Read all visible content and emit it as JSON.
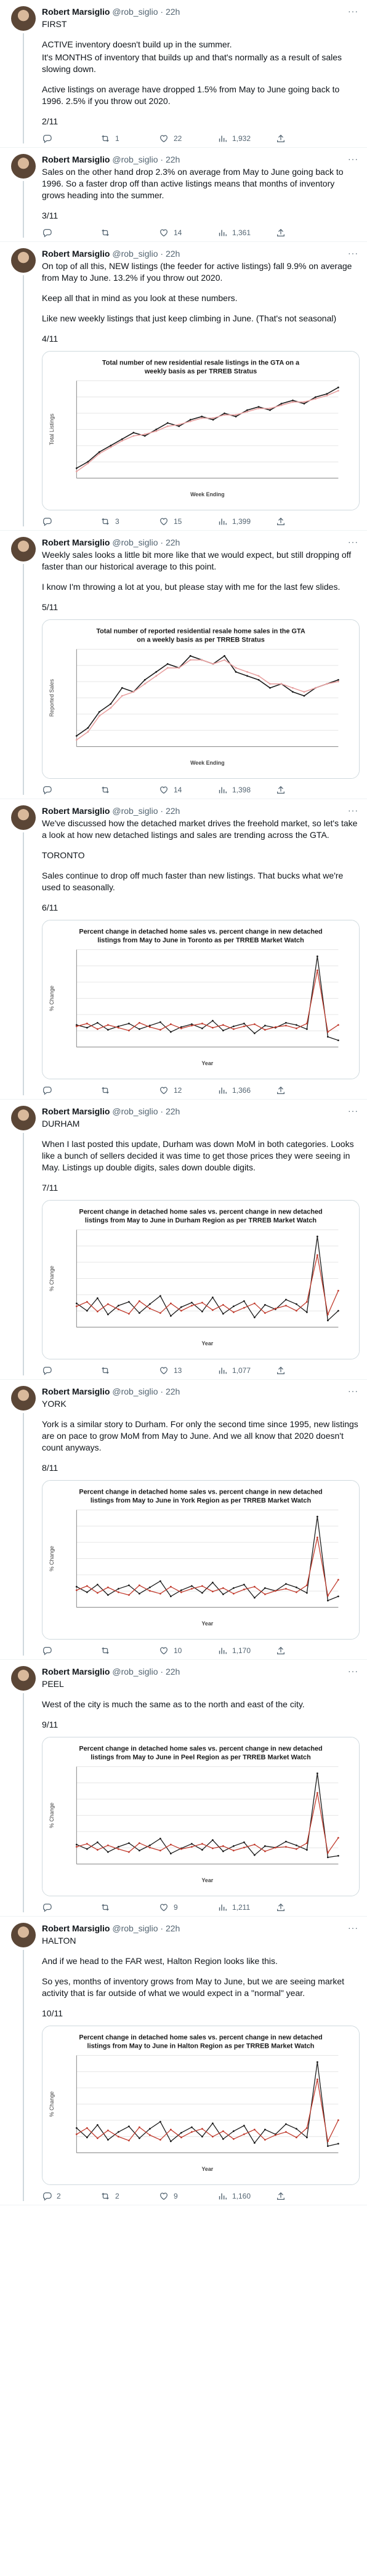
{
  "author": {
    "name": "Robert Marsiglio",
    "handle": "@rob_siglio",
    "time": "22h"
  },
  "tweets": [
    {
      "id": "t1",
      "paragraphs": [
        "FIRST",
        "ACTIVE inventory doesn't build up in the summer.",
        "It's MONTHS of inventory that builds up and that's normally as a result of sales slowing down.",
        "Active listings on average have dropped 1.5% from May to June going back to 1996. 2.5% if you throw out 2020.",
        "2/11"
      ],
      "gaps": [
        false,
        true,
        false,
        true,
        true
      ],
      "reply": "",
      "retweet": "1",
      "like": "22",
      "views": "1,932"
    },
    {
      "id": "t2",
      "paragraphs": [
        "Sales on the other hand drop 2.3% on average from May to June going back to 1996. So a faster drop off than active listings means that months of inventory grows heading into the summer.",
        "3/11"
      ],
      "gaps": [
        false,
        true
      ],
      "reply": "",
      "retweet": "",
      "like": "14",
      "views": "1,361"
    },
    {
      "id": "t3",
      "paragraphs": [
        "On top of all this, NEW listings (the feeder for active listings) fall 9.9% on average from May to June. 13.2% if you throw out 2020.",
        "Keep all that in mind as you look at these numbers.",
        "Like new weekly listings that just keep climbing in June. (That's not seasonal)",
        "4/11"
      ],
      "gaps": [
        false,
        true,
        true,
        true
      ],
      "reply": "",
      "retweet": "3",
      "like": "15",
      "views": "1,399",
      "chart": {
        "title_lines": [
          "Total number of new residential resale listings in the GTA on a",
          "weekly basis as per TRREB Stratus"
        ],
        "ylabel": "Total Listings",
        "xlabel": "Week Ending"
      }
    },
    {
      "id": "t4",
      "paragraphs": [
        "Weekly sales looks a little bit more like that we would expect, but still dropping off faster than our historical average to this point.",
        "I know I'm throwing a lot at you, but please stay with me for the last few slides.",
        "5/11"
      ],
      "gaps": [
        false,
        true,
        true
      ],
      "reply": "",
      "retweet": "",
      "like": "14",
      "views": "1,398",
      "chart": {
        "title_lines": [
          "Total number of reported residential resale home sales in the GTA",
          "on a weekly basis as per TRREB Stratus"
        ],
        "ylabel": "Reported Sales",
        "xlabel": "Week Ending"
      }
    },
    {
      "id": "t5",
      "paragraphs": [
        "We've discussed how the detached market drives the freehold market, so let's take a look at how new detached listings and sales are trending across the GTA.",
        "TORONTO",
        "Sales continue to drop off much faster than new listings. That bucks what we're used to seasonally.",
        "6/11"
      ],
      "gaps": [
        false,
        true,
        true,
        true
      ],
      "reply": "",
      "retweet": "",
      "like": "12",
      "views": "1,366",
      "chart": {
        "title_lines": [
          "Percent change in detached home sales vs. percent change in new detached",
          "listings from May to June in Toronto as per TRREB Market Watch"
        ],
        "ylabel": "% Change",
        "xlabel": "Year"
      }
    },
    {
      "id": "t6",
      "paragraphs": [
        "DURHAM",
        "When I last posted this update, Durham was down MoM in both categories. Looks like a bunch of sellers decided it was time to get those prices they were seeing in May. Listings up double digits, sales down double digits.",
        "7/11"
      ],
      "gaps": [
        false,
        true,
        true
      ],
      "reply": "",
      "retweet": "",
      "like": "13",
      "views": "1,077",
      "chart": {
        "title_lines": [
          "Percent change in detached home sales vs. percent change in new detached",
          "listings from May to June in Durham Region as per TRREB Market Watch"
        ],
        "ylabel": "% Change",
        "xlabel": "Year"
      }
    },
    {
      "id": "t7",
      "paragraphs": [
        "YORK",
        "York is a similar story to Durham. For only the second time since 1995, new listings are on pace to grow MoM from May to June. And we all know that 2020 doesn't count anyways.",
        "8/11"
      ],
      "gaps": [
        false,
        true,
        true
      ],
      "reply": "",
      "retweet": "",
      "like": "10",
      "views": "1,170",
      "chart": {
        "title_lines": [
          "Percent change in detached home sales vs. percent change in new detached",
          "listings from May to June in York Region as per TRREB Market Watch"
        ],
        "ylabel": "% Change",
        "xlabel": "Year"
      }
    },
    {
      "id": "t8",
      "paragraphs": [
        "PEEL",
        "West of the city is much the same as to the north and east of the city.",
        "9/11"
      ],
      "gaps": [
        false,
        true,
        true
      ],
      "reply": "",
      "retweet": "",
      "like": "9",
      "views": "1,211",
      "chart": {
        "title_lines": [
          "Percent change in detached home sales vs. percent change in new detached",
          "listings from May to June in Peel Region as per TRREB Market Watch"
        ],
        "ylabel": "% Change",
        "xlabel": "Year"
      }
    },
    {
      "id": "t9",
      "paragraphs": [
        "HALTON",
        "And if we head to the FAR west, Halton Region looks like this.",
        "So yes, months of inventory grows from May to June, but we are seeing market activity that is far outside of what we would expect in a \"normal\" year.",
        "10/11"
      ],
      "gaps": [
        false,
        true,
        true,
        true
      ],
      "reply": "2",
      "retweet": "2",
      "like": "9",
      "views": "1,160",
      "chart": {
        "title_lines": [
          "Percent change in detached home sales vs. percent change in new detached",
          "listings from May to June in Halton Region as per TRREB Market Watch"
        ],
        "ylabel": "% Change",
        "xlabel": "Year"
      }
    }
  ],
  "chart_data": [
    {
      "type": "line",
      "title": "Total number of new residential resale listings in the GTA on a weekly basis as per TRREB Stratus",
      "xlabel": "Week Ending",
      "ylabel": "Total Listings",
      "series": [
        {
          "name": "",
          "values": [
            2500,
            2700,
            3000,
            3200,
            3400,
            3600,
            3500,
            3700,
            3900,
            3800,
            4000,
            4100,
            4000,
            4200,
            4100,
            4300,
            4400,
            4300,
            4500,
            4600,
            4500,
            4700,
            4800,
            5000
          ]
        },
        {
          "name": "",
          "values": [
            2400,
            2650,
            2950,
            3150,
            3350,
            3500,
            3550,
            3650,
            3800,
            3850,
            3950,
            4050,
            4050,
            4150,
            4150,
            4250,
            4350,
            4350,
            4450,
            4550,
            4550,
            4650,
            4750,
            4900
          ]
        }
      ]
    },
    {
      "type": "line",
      "title": "Total number of reported residential resale home sales in the GTA on a weekly basis as per TRREB Stratus",
      "xlabel": "Week Ending",
      "ylabel": "Reported Sales",
      "series": [
        {
          "name": "",
          "values": [
            900,
            1000,
            1200,
            1300,
            1500,
            1450,
            1600,
            1700,
            1800,
            1750,
            1900,
            1850,
            1800,
            1900,
            1700,
            1650,
            1600,
            1500,
            1550,
            1450,
            1400,
            1500,
            1550,
            1600
          ]
        },
        {
          "name": "",
          "values": [
            850,
            950,
            1150,
            1250,
            1400,
            1450,
            1550,
            1650,
            1750,
            1750,
            1850,
            1850,
            1800,
            1850,
            1750,
            1700,
            1650,
            1550,
            1550,
            1500,
            1450,
            1500,
            1550,
            1580
          ]
        }
      ]
    },
    {
      "type": "line",
      "title": "Percent change in detached home sales vs. percent change in new detached listings from May to June in Toronto as per TRREB Market Watch",
      "xlabel": "Year",
      "ylabel": "% Change",
      "series": [
        {
          "name": "",
          "values": [
            -8,
            -12,
            -5,
            -15,
            -10,
            -6,
            -14,
            -9,
            -4,
            -18,
            -11,
            -7,
            -13,
            -2,
            -16,
            -10,
            -6,
            -20,
            -9,
            -12,
            -5,
            -8,
            -14,
            90,
            -25,
            -30
          ]
        },
        {
          "name": "",
          "values": [
            -10,
            -6,
            -14,
            -8,
            -12,
            -16,
            -5,
            -11,
            -15,
            -7,
            -13,
            -9,
            -6,
            -12,
            -8,
            -14,
            -10,
            -7,
            -15,
            -11,
            -9,
            -13,
            -6,
            70,
            -18,
            -8
          ]
        }
      ]
    },
    {
      "type": "line",
      "title": "Percent change in detached home sales vs. percent change in new detached listings from May to June in Durham Region as per TRREB Market Watch",
      "xlabel": "Year",
      "ylabel": "% Change",
      "series": [
        {
          "name": "",
          "values": [
            -5,
            -15,
            2,
            -20,
            -8,
            -3,
            -18,
            -6,
            5,
            -22,
            -10,
            -4,
            -16,
            3,
            -19,
            -9,
            -2,
            -24,
            -7,
            -13,
            0,
            -6,
            -17,
            85,
            -28,
            -15
          ]
        },
        {
          "name": "",
          "values": [
            -9,
            -3,
            -16,
            -6,
            -13,
            -19,
            -2,
            -12,
            -18,
            -5,
            -15,
            -8,
            -4,
            -14,
            -7,
            -17,
            -11,
            -5,
            -18,
            -12,
            -8,
            -15,
            -3,
            60,
            -20,
            12
          ]
        }
      ]
    },
    {
      "type": "line",
      "title": "Percent change in detached home sales vs. percent change in new detached listings from May to June in York Region as per TRREB Market Watch",
      "xlabel": "Year",
      "ylabel": "% Change",
      "series": [
        {
          "name": "",
          "values": [
            -6,
            -14,
            -3,
            -18,
            -9,
            -4,
            -16,
            -7,
            2,
            -20,
            -11,
            -5,
            -15,
            0,
            -17,
            -8,
            -3,
            -22,
            -8,
            -12,
            -2,
            -7,
            -15,
            95,
            -26,
            -20
          ]
        },
        {
          "name": "",
          "values": [
            -11,
            -5,
            -15,
            -7,
            -14,
            -18,
            -4,
            -12,
            -16,
            -6,
            -14,
            -9,
            -5,
            -13,
            -8,
            -16,
            -10,
            -6,
            -17,
            -12,
            -9,
            -14,
            -4,
            65,
            -19,
            4
          ]
        }
      ]
    },
    {
      "type": "line",
      "title": "Percent change in detached home sales vs. percent change in new detached listings from May to June in Peel Region as per TRREB Market Watch",
      "xlabel": "Year",
      "ylabel": "% Change",
      "series": [
        {
          "name": "",
          "values": [
            -7,
            -13,
            -4,
            -17,
            -10,
            -5,
            -15,
            -8,
            1,
            -19,
            -12,
            -6,
            -14,
            -1,
            -16,
            -9,
            -4,
            -21,
            -9,
            -11,
            -3,
            -8,
            -14,
            88,
            -24,
            -22
          ]
        },
        {
          "name": "",
          "values": [
            -10,
            -6,
            -14,
            -8,
            -13,
            -17,
            -5,
            -11,
            -15,
            -7,
            -13,
            -10,
            -6,
            -12,
            -9,
            -15,
            -11,
            -7,
            -16,
            -11,
            -10,
            -13,
            -5,
            62,
            -18,
            2
          ]
        }
      ]
    },
    {
      "type": "line",
      "title": "Percent change in detached home sales vs. percent change in new detached listings from May to June in Halton Region as per TRREB Market Watch",
      "xlabel": "Year",
      "ylabel": "% Change",
      "series": [
        {
          "name": "",
          "values": [
            -4,
            -16,
            0,
            -19,
            -9,
            -2,
            -17,
            -5,
            4,
            -21,
            -10,
            -3,
            -15,
            2,
            -18,
            -8,
            -1,
            -23,
            -6,
            -12,
            1,
            -5,
            -16,
            80,
            -27,
            -24
          ]
        },
        {
          "name": "",
          "values": [
            -12,
            -4,
            -17,
            -7,
            -15,
            -20,
            -3,
            -13,
            -19,
            -6,
            -16,
            -9,
            -5,
            -15,
            -8,
            -18,
            -12,
            -6,
            -19,
            -13,
            -9,
            -16,
            -4,
            58,
            -21,
            6
          ]
        }
      ]
    }
  ],
  "colors": {
    "primary_line": "#1a1a1a",
    "secondary_line": "#e8a0a0",
    "red_line": "#c0392b",
    "grid": "#e6e6e6"
  }
}
